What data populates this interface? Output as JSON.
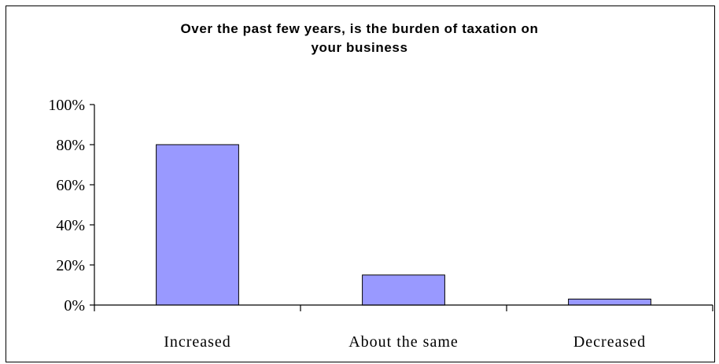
{
  "chart_data": {
    "type": "bar",
    "title": "Over the past few years, is the burden of taxation on your business",
    "title_lines": [
      "Over the past few years, is the burden of taxation on",
      "your business"
    ],
    "categories": [
      "Increased",
      "About the same",
      "Decreased"
    ],
    "values": [
      80,
      15,
      3
    ],
    "unit": "%",
    "ylim": [
      0,
      100
    ],
    "yticks": [
      0,
      20,
      40,
      60,
      80,
      100
    ],
    "ytick_labels": [
      "0%",
      "20%",
      "40%",
      "60%",
      "80%",
      "100%"
    ],
    "xlabel": "",
    "ylabel": "",
    "grid": false,
    "legend": "none",
    "bar_color": "#9999FF",
    "bar_edge_color": "#000000"
  }
}
